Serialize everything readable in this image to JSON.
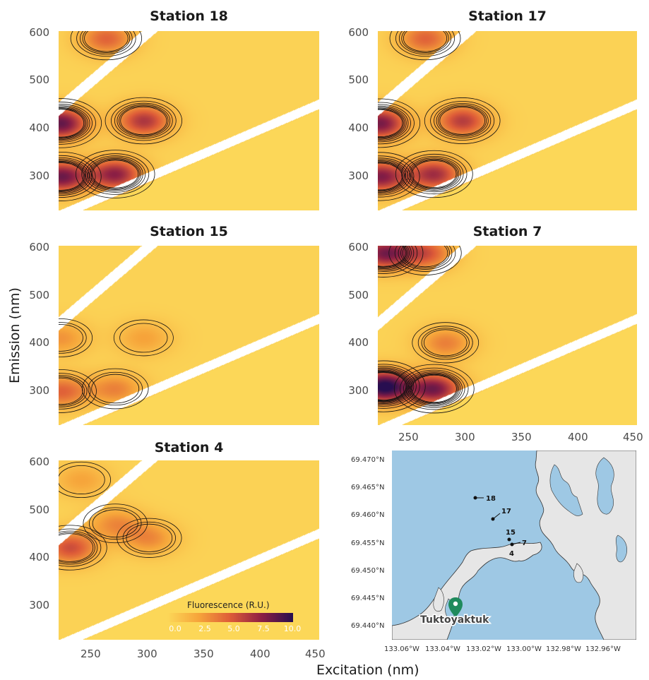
{
  "chart_data": [
    {
      "type": "heatmap",
      "title": "Station 18",
      "xlim": [
        220,
        450
      ],
      "ylim": [
        230,
        600
      ],
      "peaks": [
        {
          "x": 295,
          "y": 415,
          "value": 6.3
        },
        {
          "x": 270,
          "y": 305,
          "value": 7.2
        },
        {
          "x": 222,
          "y": 300,
          "value": 8.0
        },
        {
          "x": 222,
          "y": 410,
          "value": 8.3
        },
        {
          "x": 262,
          "y": 585,
          "value": 4.5
        }
      ]
    },
    {
      "type": "heatmap",
      "title": "Station 17",
      "xlim": [
        220,
        450
      ],
      "ylim": [
        230,
        600
      ],
      "peaks": [
        {
          "x": 295,
          "y": 415,
          "value": 6.0
        },
        {
          "x": 270,
          "y": 305,
          "value": 6.6
        },
        {
          "x": 222,
          "y": 300,
          "value": 7.5
        },
        {
          "x": 222,
          "y": 410,
          "value": 7.8
        },
        {
          "x": 262,
          "y": 585,
          "value": 4.5
        }
      ]
    },
    {
      "type": "heatmap",
      "title": "Station 15",
      "xlim": [
        220,
        450
      ],
      "ylim": [
        230,
        600
      ],
      "peaks": [
        {
          "x": 295,
          "y": 410,
          "value": 2.3
        },
        {
          "x": 270,
          "y": 305,
          "value": 3.4
        },
        {
          "x": 222,
          "y": 300,
          "value": 4.5
        },
        {
          "x": 222,
          "y": 410,
          "value": 2.8
        }
      ]
    },
    {
      "type": "heatmap",
      "title": "Station 7",
      "xlim": [
        220,
        450
      ],
      "ylim": [
        230,
        600
      ],
      "peaks": [
        {
          "x": 270,
          "y": 305,
          "value": 7.8
        },
        {
          "x": 225,
          "y": 310,
          "value": 10.0
        },
        {
          "x": 280,
          "y": 400,
          "value": 3.5
        },
        {
          "x": 225,
          "y": 585,
          "value": 7.5
        },
        {
          "x": 262,
          "y": 585,
          "value": 5.0
        }
      ]
    },
    {
      "type": "heatmap",
      "title": "Station 4",
      "xlim": [
        220,
        450
      ],
      "ylim": [
        230,
        600
      ],
      "peaks": [
        {
          "x": 300,
          "y": 440,
          "value": 3.1
        },
        {
          "x": 230,
          "y": 420,
          "value": 5.3
        },
        {
          "x": 270,
          "y": 470,
          "value": 3.0
        },
        {
          "x": 240,
          "y": 560,
          "value": 2.2
        }
      ]
    }
  ],
  "axes": {
    "xlabel": "Excitation (nm)",
    "ylabel": "Emission (nm)",
    "xticks": [
      "250",
      "300",
      "350",
      "400",
      "450"
    ],
    "yticks": [
      "600",
      "500",
      "400",
      "300"
    ]
  },
  "legend": {
    "title": "Fluorescence (R.U.)",
    "ticks": [
      "0.0",
      "2.5",
      "5.0",
      "7.5",
      "10.0"
    ],
    "range": [
      0,
      10
    ]
  },
  "map": {
    "lat_ticks": [
      "69.470°N",
      "69.465°N",
      "69.460°N",
      "69.455°N",
      "69.450°N",
      "69.445°N",
      "69.440°N"
    ],
    "lon_ticks": [
      "133.06°W",
      "133.04°W",
      "133.02°W",
      "133.00°W",
      "132.98°W",
      "132.96°W"
    ],
    "stations": [
      "18",
      "17",
      "15",
      "7",
      "4"
    ],
    "town": "Tuktoyaktuk",
    "colors": {
      "water": "#9ec8e4",
      "land": "#e6e6e6",
      "marker": "#1f8a5c"
    }
  }
}
